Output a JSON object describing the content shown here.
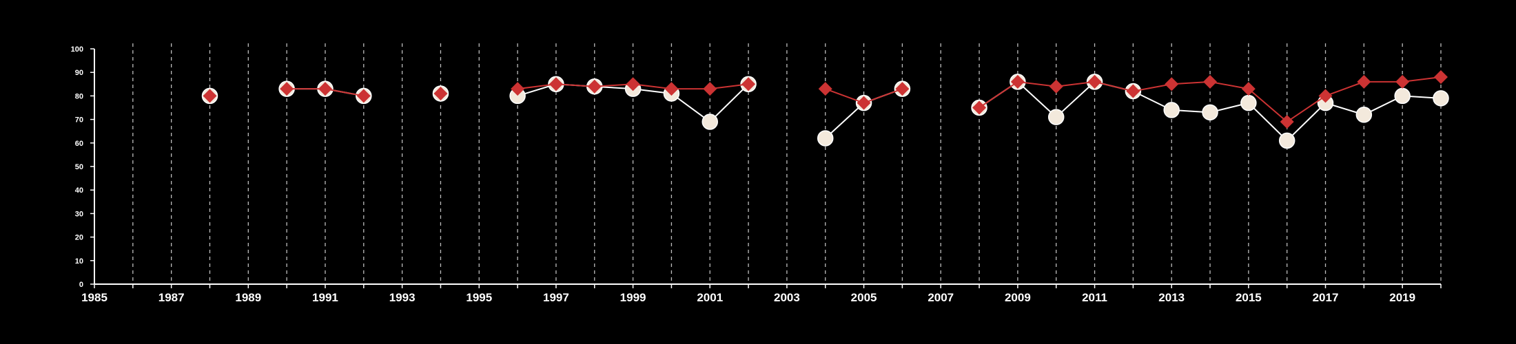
{
  "chart_data": {
    "type": "line",
    "title": "",
    "xlabel": "",
    "ylabel": "",
    "xlim": [
      1985,
      2020
    ],
    "ylim": [
      0,
      100
    ],
    "x_ticks": [
      1985,
      1987,
      1989,
      1991,
      1993,
      1995,
      1997,
      1999,
      2001,
      2003,
      2005,
      2007,
      2009,
      2011,
      2013,
      2015,
      2017,
      2019
    ],
    "y_ticks": [
      0,
      10,
      20,
      30,
      40,
      50,
      60,
      70,
      80,
      90,
      100
    ],
    "gridlines": "vertical dashed at every year",
    "legend": "none",
    "series": [
      {
        "marker": "circle",
        "color": "#f3e9dc",
        "points": [
          [
            1988,
            80
          ],
          [
            1990,
            83
          ],
          [
            1991,
            83
          ],
          [
            1992,
            80
          ],
          [
            1994,
            81
          ],
          [
            1996,
            80
          ],
          [
            1997,
            85
          ],
          [
            1998,
            84
          ],
          [
            1999,
            83
          ],
          [
            2000,
            81
          ],
          [
            2001,
            69
          ],
          [
            2002,
            85
          ],
          [
            2004,
            62
          ],
          [
            2005,
            77
          ],
          [
            2006,
            83
          ],
          [
            2008,
            75
          ],
          [
            2009,
            86
          ],
          [
            2010,
            71
          ],
          [
            2011,
            86
          ],
          [
            2012,
            82
          ],
          [
            2013,
            74
          ],
          [
            2014,
            73
          ],
          [
            2015,
            77
          ],
          [
            2016,
            61
          ],
          [
            2017,
            77
          ],
          [
            2018,
            72
          ],
          [
            2019,
            80
          ],
          [
            2020,
            79
          ]
        ]
      },
      {
        "marker": "diamond",
        "color": "#cc3333",
        "points": [
          [
            1988,
            80
          ],
          [
            1990,
            83
          ],
          [
            1991,
            83
          ],
          [
            1992,
            80
          ],
          [
            1994,
            81
          ],
          [
            1996,
            83
          ],
          [
            1997,
            85
          ],
          [
            1998,
            84
          ],
          [
            1999,
            85
          ],
          [
            2000,
            83
          ],
          [
            2001,
            83
          ],
          [
            2002,
            85
          ],
          [
            2004,
            83
          ],
          [
            2005,
            77
          ],
          [
            2006,
            83
          ],
          [
            2008,
            75
          ],
          [
            2009,
            86
          ],
          [
            2010,
            84
          ],
          [
            2011,
            86
          ],
          [
            2012,
            82
          ],
          [
            2013,
            85
          ],
          [
            2014,
            86
          ],
          [
            2015,
            83
          ],
          [
            2016,
            69
          ],
          [
            2017,
            80
          ],
          [
            2018,
            86
          ],
          [
            2019,
            86
          ],
          [
            2020,
            88
          ]
        ]
      }
    ]
  }
}
